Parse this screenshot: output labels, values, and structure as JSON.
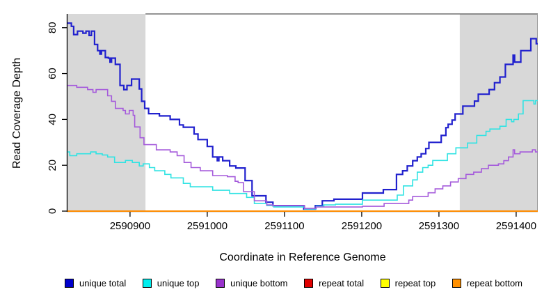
{
  "chart_data": {
    "type": "line",
    "subtype": "step",
    "title": "",
    "xlabel": "Coordinate in Reference Genome",
    "ylabel": "Read Coverage Depth",
    "xlim": [
      2590819,
      2591428
    ],
    "ylim": [
      0,
      86
    ],
    "x_ticks": [
      2590900,
      2591000,
      2591100,
      2591200,
      2591300,
      2591400
    ],
    "y_ticks": [
      0,
      20,
      40,
      60,
      80
    ],
    "grid": "off",
    "legend_position": "bottom",
    "shaded_regions": [
      {
        "x0": 2590819,
        "x1": 2590920,
        "color": "#d8d8d8"
      },
      {
        "x0": 2591327,
        "x1": 2591428,
        "color": "#d8d8d8"
      }
    ],
    "series": [
      {
        "name": "unique total",
        "color": "#2121ce",
        "width": 2.2,
        "points": [
          [
            2590819,
            82
          ],
          [
            2590824,
            80.6
          ],
          [
            2590827,
            77
          ],
          [
            2590832,
            78.5
          ],
          [
            2590839,
            77.6
          ],
          [
            2590843,
            78.5
          ],
          [
            2590847,
            76.6
          ],
          [
            2590850,
            78.5
          ],
          [
            2590854,
            72.7
          ],
          [
            2590858,
            70
          ],
          [
            2590861,
            68.5
          ],
          [
            2590863,
            70
          ],
          [
            2590868,
            67
          ],
          [
            2590872,
            66.7
          ],
          [
            2590874,
            65
          ],
          [
            2590876,
            66.7
          ],
          [
            2590881,
            64
          ],
          [
            2590887,
            54.8
          ],
          [
            2590892,
            53
          ],
          [
            2590896,
            54.8
          ],
          [
            2590902,
            57.6
          ],
          [
            2590912,
            53.3
          ],
          [
            2590915,
            47.9
          ],
          [
            2590919,
            44.8
          ],
          [
            2590924,
            42.5
          ],
          [
            2590938,
            41.5
          ],
          [
            2590952,
            40
          ],
          [
            2590964,
            37.6
          ],
          [
            2590969,
            36.6
          ],
          [
            2590983,
            33.6
          ],
          [
            2590988,
            31.2
          ],
          [
            2591000,
            28.2
          ],
          [
            2591007,
            23.6
          ],
          [
            2591013,
            22
          ],
          [
            2591015,
            23.6
          ],
          [
            2591020,
            22
          ],
          [
            2591029,
            19.7
          ],
          [
            2591037,
            18.8
          ],
          [
            2591049,
            13.3
          ],
          [
            2591058,
            6.7
          ],
          [
            2591076,
            3.9
          ],
          [
            2591085,
            2.4
          ],
          [
            2591125,
            0.9
          ],
          [
            2591140,
            2.4
          ],
          [
            2591149,
            4.5
          ],
          [
            2591164,
            5.2
          ],
          [
            2591201,
            7.9
          ],
          [
            2591228,
            9.4
          ],
          [
            2591245,
            16
          ],
          [
            2591253,
            17.6
          ],
          [
            2591259,
            19.7
          ],
          [
            2591266,
            22
          ],
          [
            2591272,
            23.6
          ],
          [
            2591277,
            25
          ],
          [
            2591283,
            27.3
          ],
          [
            2591287,
            30
          ],
          [
            2591303,
            33
          ],
          [
            2591309,
            36.4
          ],
          [
            2591312,
            37.9
          ],
          [
            2591317,
            39.7
          ],
          [
            2591321,
            42.4
          ],
          [
            2591331,
            45.8
          ],
          [
            2591346,
            48
          ],
          [
            2591351,
            51
          ],
          [
            2591365,
            53
          ],
          [
            2591372,
            56
          ],
          [
            2591379,
            58.5
          ],
          [
            2591386,
            64
          ],
          [
            2591396,
            68
          ],
          [
            2591398,
            65
          ],
          [
            2591406,
            70
          ],
          [
            2591419,
            75.2
          ],
          [
            2591426,
            73
          ],
          [
            2591428,
            73
          ]
        ]
      },
      {
        "name": "unique top",
        "color": "#30e3e3",
        "width": 1.6,
        "points": [
          [
            2590819,
            25.8
          ],
          [
            2590822,
            24.2
          ],
          [
            2590831,
            25
          ],
          [
            2590849,
            25.8
          ],
          [
            2590856,
            25
          ],
          [
            2590864,
            24.5
          ],
          [
            2590871,
            23.6
          ],
          [
            2590880,
            21.2
          ],
          [
            2590894,
            22.1
          ],
          [
            2590903,
            21.2
          ],
          [
            2590912,
            19.7
          ],
          [
            2590917,
            20.6
          ],
          [
            2590925,
            19
          ],
          [
            2590932,
            17.6
          ],
          [
            2590945,
            16
          ],
          [
            2590953,
            14.5
          ],
          [
            2590969,
            12.1
          ],
          [
            2590978,
            10.6
          ],
          [
            2591007,
            9.1
          ],
          [
            2591029,
            7.7
          ],
          [
            2591051,
            6
          ],
          [
            2591061,
            3.3
          ],
          [
            2591077,
            2.4
          ],
          [
            2591086,
            1.8
          ],
          [
            2591126,
            0.9
          ],
          [
            2591141,
            2.1
          ],
          [
            2591151,
            2.7
          ],
          [
            2591166,
            3
          ],
          [
            2591201,
            4.8
          ],
          [
            2591246,
            7
          ],
          [
            2591254,
            11
          ],
          [
            2591266,
            13.6
          ],
          [
            2591272,
            17
          ],
          [
            2591279,
            19
          ],
          [
            2591286,
            20
          ],
          [
            2591292,
            22.1
          ],
          [
            2591311,
            25
          ],
          [
            2591322,
            27.6
          ],
          [
            2591337,
            29.7
          ],
          [
            2591349,
            33
          ],
          [
            2591361,
            34.8
          ],
          [
            2591366,
            35.8
          ],
          [
            2591379,
            37
          ],
          [
            2591387,
            40
          ],
          [
            2591394,
            39
          ],
          [
            2591397,
            40
          ],
          [
            2591403,
            42.4
          ],
          [
            2591409,
            48.2
          ],
          [
            2591423,
            46.7
          ],
          [
            2591425,
            48.2
          ],
          [
            2591428,
            48.2
          ]
        ]
      },
      {
        "name": "unique bottom",
        "color": "#a55bdb",
        "width": 1.6,
        "points": [
          [
            2590819,
            54.8
          ],
          [
            2590831,
            54
          ],
          [
            2590845,
            53
          ],
          [
            2590852,
            51.8
          ],
          [
            2590856,
            53
          ],
          [
            2590871,
            50.3
          ],
          [
            2590876,
            47.9
          ],
          [
            2590881,
            44.8
          ],
          [
            2590891,
            43.9
          ],
          [
            2590894,
            42.4
          ],
          [
            2590899,
            43.9
          ],
          [
            2590904,
            41.8
          ],
          [
            2590906,
            36.7
          ],
          [
            2590913,
            32
          ],
          [
            2590918,
            29
          ],
          [
            2590934,
            26.7
          ],
          [
            2590952,
            25.8
          ],
          [
            2590961,
            24.2
          ],
          [
            2590970,
            21.2
          ],
          [
            2590979,
            19
          ],
          [
            2590991,
            17.6
          ],
          [
            2591007,
            15.5
          ],
          [
            2591026,
            15
          ],
          [
            2591036,
            13
          ],
          [
            2591040,
            12.4
          ],
          [
            2591047,
            8.5
          ],
          [
            2591061,
            4.5
          ],
          [
            2591077,
            2.7
          ],
          [
            2591085,
            2.4
          ],
          [
            2591126,
            1.2
          ],
          [
            2591141,
            1.8
          ],
          [
            2591201,
            2.1
          ],
          [
            2591229,
            3.3
          ],
          [
            2591261,
            4.8
          ],
          [
            2591266,
            6.4
          ],
          [
            2591286,
            8
          ],
          [
            2591295,
            9.7
          ],
          [
            2591305,
            11
          ],
          [
            2591315,
            12.7
          ],
          [
            2591325,
            14.2
          ],
          [
            2591335,
            16
          ],
          [
            2591345,
            17
          ],
          [
            2591355,
            18.5
          ],
          [
            2591364,
            20
          ],
          [
            2591377,
            20.6
          ],
          [
            2591384,
            22
          ],
          [
            2591390,
            23.6
          ],
          [
            2591396,
            26.7
          ],
          [
            2591398,
            25
          ],
          [
            2591405,
            25.8
          ],
          [
            2591421,
            26.7
          ],
          [
            2591425,
            25.8
          ],
          [
            2591428,
            25.8
          ]
        ]
      },
      {
        "name": "repeat total",
        "color": "#de0000",
        "width": 1.5,
        "points": [
          [
            2590819,
            0
          ],
          [
            2591428,
            0
          ]
        ]
      },
      {
        "name": "repeat top",
        "color": "#ffff00",
        "width": 1.5,
        "points": [
          [
            2590819,
            0
          ],
          [
            2591428,
            0
          ]
        ]
      },
      {
        "name": "repeat bottom",
        "color": "#ff8c00",
        "width": 2,
        "points": [
          [
            2590819,
            0
          ],
          [
            2591428,
            0
          ]
        ]
      }
    ]
  },
  "legend": {
    "items": [
      {
        "label": "unique total",
        "color": "#0000cd"
      },
      {
        "label": "unique top",
        "color": "#00eeee"
      },
      {
        "label": "unique bottom",
        "color": "#9932cc"
      },
      {
        "label": "repeat total",
        "color": "#e00000"
      },
      {
        "label": "repeat top",
        "color": "#ffff00"
      },
      {
        "label": "repeat bottom",
        "color": "#ff9000"
      }
    ]
  },
  "axes": {
    "xlabel": "Coordinate in Reference Genome",
    "ylabel": "Read Coverage Depth"
  }
}
